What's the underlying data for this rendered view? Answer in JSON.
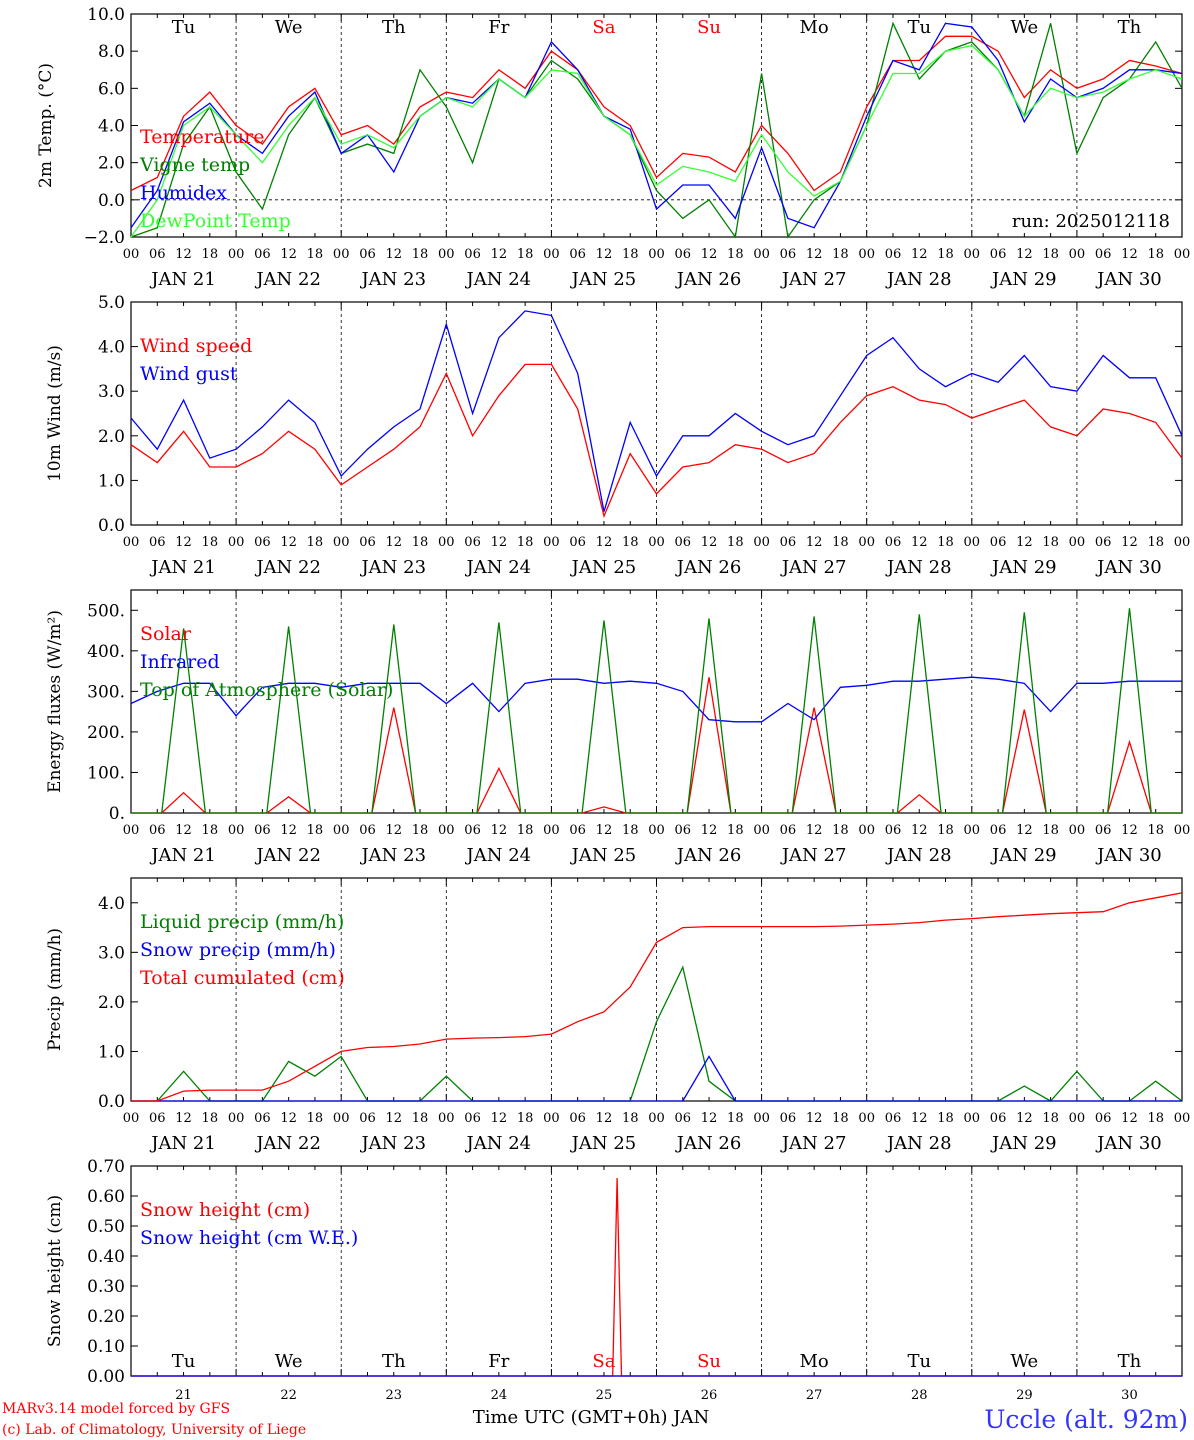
{
  "chart_data": [
    {
      "panel": "temperature",
      "type": "line",
      "ylabel": "2m Temp. (°C)",
      "ylim": [
        -2,
        10
      ],
      "yticks": [
        "10.0",
        "8.0",
        "6.0",
        "4.0",
        "2.0",
        "0.0",
        "−2.0"
      ],
      "grid": "dashed vertical lines at each 00 UTC; dashed zero line",
      "legend_position": "left",
      "annotation": "run: 2025012118",
      "day_labels": [
        "Tu",
        "We",
        "Th",
        "Fr",
        "Sa",
        "Su",
        "Mo",
        "Tu",
        "We",
        "Th"
      ],
      "x_hours": [
        0,
        6,
        12,
        18,
        24,
        30,
        36,
        42,
        48,
        54,
        60,
        66,
        72,
        78,
        84,
        90,
        96,
        102,
        108,
        114,
        120,
        126,
        132,
        138,
        144,
        150,
        156,
        162,
        168,
        174,
        180,
        186,
        192,
        198,
        204,
        210,
        216,
        222,
        228,
        234,
        240
      ],
      "series": [
        {
          "name": "Temperature",
          "color": "#ff0000",
          "values": [
            0.5,
            1.2,
            4.5,
            5.8,
            4.0,
            3.0,
            5.0,
            6.0,
            3.5,
            4.0,
            3.0,
            5.0,
            5.8,
            5.5,
            7.0,
            6.0,
            8.0,
            7.0,
            5.0,
            4.0,
            1.2,
            2.5,
            2.3,
            1.5,
            4.0,
            2.5,
            0.5,
            1.5,
            5.0,
            7.5,
            7.5,
            8.8,
            8.8,
            8.0,
            5.5,
            7.0,
            6.0,
            6.5,
            7.5,
            7.2,
            6.8
          ]
        },
        {
          "name": "Vigne temp",
          "color": "#008000",
          "values": [
            -2.0,
            -1.5,
            3.0,
            5.0,
            1.5,
            -0.5,
            3.5,
            5.5,
            2.5,
            3.0,
            2.5,
            7.0,
            5.0,
            2.0,
            6.5,
            5.5,
            7.5,
            6.5,
            4.5,
            3.5,
            0.5,
            -1.0,
            0.0,
            -2.0,
            6.8,
            -2.0,
            0.0,
            1.0,
            4.0,
            9.5,
            6.5,
            8.0,
            8.5,
            7.0,
            4.5,
            9.5,
            2.5,
            5.5,
            6.5,
            8.5,
            6.0
          ]
        },
        {
          "name": "Humidex",
          "color": "#0000ff",
          "values": [
            -1.5,
            0.5,
            4.2,
            5.2,
            3.5,
            2.5,
            4.5,
            5.8,
            2.5,
            3.5,
            1.5,
            4.5,
            5.5,
            5.2,
            6.5,
            5.5,
            8.5,
            7.0,
            4.5,
            3.8,
            -0.5,
            0.8,
            0.8,
            -1.0,
            2.8,
            -1.0,
            -1.5,
            1.0,
            4.5,
            7.5,
            7.0,
            9.5,
            9.3,
            7.5,
            4.2,
            6.5,
            5.5,
            6.0,
            7.0,
            7.0,
            6.8
          ]
        },
        {
          "name": "DewPoint Temp",
          "color": "#33ff33",
          "values": [
            -2.0,
            0.0,
            4.0,
            5.0,
            3.5,
            2.0,
            4.0,
            5.5,
            3.0,
            3.5,
            2.8,
            4.5,
            5.5,
            5.0,
            6.5,
            5.5,
            7.0,
            6.8,
            4.5,
            3.5,
            0.8,
            1.8,
            1.5,
            1.0,
            3.5,
            1.5,
            0.2,
            1.0,
            4.0,
            6.8,
            6.8,
            8.0,
            8.3,
            7.0,
            4.5,
            6.0,
            5.5,
            5.8,
            6.5,
            7.0,
            6.5
          ]
        }
      ]
    },
    {
      "panel": "wind",
      "type": "line",
      "ylabel": "10m Wind (m/s)",
      "ylim": [
        0,
        5
      ],
      "yticks": [
        "5.0",
        "4.0",
        "3.0",
        "2.0",
        "1.0",
        "0.0"
      ],
      "legend_position": "left",
      "x_hours": [
        0,
        6,
        12,
        18,
        24,
        30,
        36,
        42,
        48,
        54,
        60,
        66,
        72,
        78,
        84,
        90,
        96,
        102,
        108,
        114,
        120,
        126,
        132,
        138,
        144,
        150,
        156,
        162,
        168,
        174,
        180,
        186,
        192,
        198,
        204,
        210,
        216,
        222,
        228,
        234,
        240
      ],
      "series": [
        {
          "name": "Wind speed",
          "color": "#ff0000",
          "values": [
            1.8,
            1.4,
            2.1,
            1.3,
            1.3,
            1.6,
            2.1,
            1.7,
            0.9,
            1.3,
            1.7,
            2.2,
            3.4,
            2.0,
            2.9,
            3.6,
            3.6,
            2.6,
            0.2,
            1.6,
            0.7,
            1.3,
            1.4,
            1.8,
            1.7,
            1.4,
            1.6,
            2.3,
            2.9,
            3.1,
            2.8,
            2.7,
            2.4,
            2.6,
            2.8,
            2.2,
            2.0,
            2.6,
            2.5,
            2.3,
            1.5
          ]
        },
        {
          "name": "Wind gust",
          "color": "#0000ff",
          "values": [
            2.4,
            1.7,
            2.8,
            1.5,
            1.7,
            2.2,
            2.8,
            2.3,
            1.1,
            1.7,
            2.2,
            2.6,
            4.5,
            2.5,
            4.2,
            4.8,
            4.7,
            3.4,
            0.3,
            2.3,
            1.1,
            2.0,
            2.0,
            2.5,
            2.1,
            1.8,
            2.0,
            2.9,
            3.8,
            4.2,
            3.5,
            3.1,
            3.4,
            3.2,
            3.8,
            3.1,
            3.0,
            3.8,
            3.3,
            3.3,
            2.0
          ]
        }
      ]
    },
    {
      "panel": "energy",
      "type": "line",
      "ylabel": "Energy fluxes (W/m²)",
      "ylim": [
        0,
        550
      ],
      "yticks": [
        "500.",
        "400.",
        "300.",
        "200.",
        "100.",
        "0."
      ],
      "legend_position": "left",
      "x_hours": [
        0,
        6,
        12,
        18,
        24,
        30,
        36,
        42,
        48,
        54,
        60,
        66,
        72,
        78,
        84,
        90,
        96,
        102,
        108,
        114,
        120,
        126,
        132,
        138,
        144,
        150,
        156,
        162,
        168,
        174,
        180,
        186,
        192,
        198,
        204,
        210,
        216,
        222,
        228,
        234,
        240
      ],
      "series": [
        {
          "name": "Solar",
          "color": "#ff0000",
          "daily_peak": [
            50,
            40,
            260,
            110,
            15,
            335,
            260,
            45,
            255,
            175
          ]
        },
        {
          "name": "Infrared",
          "color": "#0000ff",
          "values": [
            270,
            300,
            320,
            320,
            240,
            310,
            320,
            320,
            310,
            320,
            320,
            320,
            270,
            320,
            250,
            320,
            330,
            330,
            320,
            325,
            320,
            300,
            230,
            225,
            225,
            270,
            230,
            310,
            315,
            325,
            325,
            330,
            335,
            330,
            320,
            250,
            320,
            320,
            325,
            325,
            325
          ]
        },
        {
          "name": "Top of Atmosphere (Solar)",
          "color": "#008000",
          "daily_peak": [
            455,
            460,
            465,
            470,
            475,
            480,
            485,
            490,
            495,
            505
          ]
        }
      ]
    },
    {
      "panel": "precip",
      "type": "line",
      "ylabel": "Precip (mm/h)",
      "ylim": [
        0,
        4.5
      ],
      "yticks": [
        "4.0",
        "3.0",
        "2.0",
        "1.0",
        "0.0"
      ],
      "legend_position": "left",
      "x_hours": [
        0,
        6,
        12,
        18,
        24,
        30,
        36,
        42,
        48,
        54,
        60,
        66,
        72,
        78,
        84,
        90,
        96,
        102,
        108,
        114,
        120,
        126,
        132,
        138,
        144,
        150,
        156,
        162,
        168,
        174,
        180,
        186,
        192,
        198,
        204,
        210,
        216,
        222,
        228,
        234,
        240
      ],
      "series": [
        {
          "name": "Liquid precip (mm/h)",
          "color": "#008000",
          "values": [
            0,
            0,
            0.6,
            0,
            0,
            0,
            0.8,
            0.5,
            0.9,
            0,
            0,
            0,
            0.5,
            0,
            0,
            0,
            0,
            0,
            0,
            0,
            1.6,
            2.7,
            0.4,
            0,
            0,
            0,
            0,
            0,
            0,
            0,
            0,
            0,
            0,
            0,
            0.3,
            0,
            0.6,
            0,
            0,
            0.4,
            0
          ]
        },
        {
          "name": "Snow precip (mm/h)",
          "color": "#0000ff",
          "values": [
            0,
            0,
            0,
            0,
            0,
            0,
            0,
            0,
            0,
            0,
            0,
            0,
            0,
            0,
            0,
            0,
            0,
            0,
            0,
            0,
            0,
            0,
            0.9,
            0,
            0,
            0,
            0,
            0,
            0,
            0,
            0,
            0,
            0,
            0,
            0,
            0,
            0,
            0,
            0,
            0,
            0
          ]
        },
        {
          "name": "Total cumulated (cm)",
          "color": "#ff0000",
          "values": [
            0,
            0,
            0.2,
            0.22,
            0.22,
            0.22,
            0.4,
            0.7,
            1.0,
            1.08,
            1.1,
            1.15,
            1.25,
            1.27,
            1.28,
            1.3,
            1.35,
            1.6,
            1.8,
            2.3,
            3.2,
            3.5,
            3.52,
            3.52,
            3.52,
            3.52,
            3.52,
            3.53,
            3.55,
            3.57,
            3.6,
            3.65,
            3.68,
            3.72,
            3.75,
            3.78,
            3.8,
            3.82,
            4.0,
            4.1,
            4.2
          ]
        }
      ]
    },
    {
      "panel": "snow",
      "type": "line",
      "ylabel": "Snow height (cm)",
      "ylim": [
        0,
        0.7
      ],
      "yticks": [
        "0.70",
        "0.60",
        "0.50",
        "0.40",
        "0.30",
        "0.20",
        "0.10",
        "0.00"
      ],
      "legend_position": "left",
      "day_labels": [
        "Tu",
        "We",
        "Th",
        "Fr",
        "Sa",
        "Su",
        "Mo",
        "Tu",
        "We",
        "Th"
      ],
      "series": [
        {
          "name": "Snow height (cm)",
          "color": "#ff0000",
          "spike_hour": 111,
          "spike_value": 0.66
        },
        {
          "name": "Snow height (cm W.E.)",
          "color": "#0000ff",
          "values": [
            0
          ]
        }
      ]
    }
  ],
  "axis": {
    "hour_ticks": [
      "00",
      "06",
      "12",
      "18"
    ],
    "days": [
      "JAN 21",
      "JAN 22",
      "JAN 23",
      "JAN 24",
      "JAN 25",
      "JAN 26",
      "JAN 27",
      "JAN 28",
      "JAN 29",
      "JAN 30"
    ],
    "bottom_days": [
      "21",
      "22",
      "23",
      "24",
      "25",
      "26",
      "27",
      "28",
      "29",
      "30"
    ],
    "weekend_color": "#ff0000",
    "weekend_index": [
      4,
      5
    ],
    "xlabel": "Time UTC (GMT+0h) JAN"
  },
  "footer": {
    "credit_line1": "MARv3.14 model forced by GFS",
    "credit_line2": "(c) Lab. of Climatology, University of Liege",
    "station": "Uccle (alt. 92m)"
  }
}
